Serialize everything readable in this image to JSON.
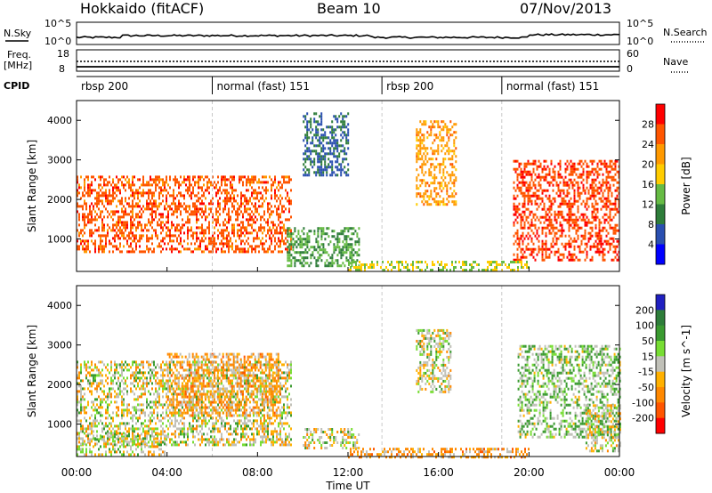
{
  "header": {
    "title": "Hokkaido (fitACF)",
    "beam": "Beam 10",
    "date": "07/Nov/2013"
  },
  "noise_panel": {
    "left_label": "N.Sky",
    "right_label": "N.Search",
    "left_ticks": [
      "10^5",
      "10^0"
    ],
    "right_ticks": [
      "10^5",
      "10^0"
    ]
  },
  "freq_panel": {
    "left_label_1": "Freq.",
    "left_label_2": "[MHz]",
    "right_label": "Nave",
    "left_ticks": [
      "18",
      "8"
    ],
    "right_ticks": [
      "60",
      "0"
    ]
  },
  "cpid": {
    "label": "CPID",
    "segments": [
      {
        "name": "rbsp 200",
        "start_hour": 0.0
      },
      {
        "name": "normal (fast) 151",
        "start_hour": 6.0
      },
      {
        "name": "rbsp 200",
        "start_hour": 13.5
      },
      {
        "name": "normal (fast) 151",
        "start_hour": 18.8
      }
    ]
  },
  "power_panel": {
    "ylabel": "Slant Range [km]",
    "cbar_label": "Power [dB]",
    "cbar_ticks": [
      "28",
      "24",
      "20",
      "16",
      "12",
      "8",
      "4"
    ],
    "colors": [
      "#0000ff",
      "#2a4fb0",
      "#2e7d3a",
      "#66bb44",
      "#ffcc00",
      "#ff9900",
      "#ff5500",
      "#ff0000"
    ]
  },
  "velocity_panel": {
    "ylabel": "Slant Range [km]",
    "cbar_label": "Velocity [m s^-1]",
    "cbar_ticks": [
      "200",
      "100",
      "50",
      "15",
      "-15",
      "-50",
      "-100",
      "-200"
    ],
    "colors": [
      "#2020c0",
      "#2e7d3a",
      "#3a9a30",
      "#77dd33",
      "#c0c0b8",
      "#ffb000",
      "#ff8800",
      "#ff5500",
      "#ff0000"
    ]
  },
  "x_axis": {
    "label": "Time UT",
    "ticks": [
      "00:00",
      "04:00",
      "08:00",
      "12:00",
      "16:00",
      "20:00",
      "00:00"
    ]
  },
  "chart_data": [
    {
      "type": "heatmap",
      "name": "power",
      "xlabel": "Time UT",
      "ylabel": "Slant Range [km]",
      "xlim": [
        0,
        24
      ],
      "ylim": [
        180,
        4500
      ],
      "yticks": [
        1000,
        2000,
        3000,
        4000
      ],
      "clim": [
        0,
        32
      ],
      "echo_regions": [
        {
          "t": [
            0.0,
            9.5
          ],
          "range": [
            700,
            2600
          ],
          "value": 26
        },
        {
          "t": [
            9.3,
            12.5
          ],
          "range": [
            300,
            1300
          ],
          "value": 12
        },
        {
          "t": [
            10.0,
            12.0
          ],
          "range": [
            2600,
            4200
          ],
          "value": 8
        },
        {
          "t": [
            15.0,
            16.8
          ],
          "range": [
            1900,
            4000
          ],
          "value": 22
        },
        {
          "t": [
            19.3,
            24.0
          ],
          "range": [
            500,
            3000
          ],
          "value": 27
        },
        {
          "t": [
            12.0,
            20.0
          ],
          "range": [
            180,
            450
          ],
          "value": 16
        }
      ]
    },
    {
      "type": "heatmap",
      "name": "velocity",
      "xlabel": "Time UT",
      "ylabel": "Slant Range [km]",
      "xlim": [
        0,
        24
      ],
      "ylim": [
        180,
        4500
      ],
      "yticks": [
        1000,
        2000,
        3000,
        4000
      ],
      "clim": [
        -250,
        250
      ],
      "echo_regions": [
        {
          "t": [
            0.0,
            9.5
          ],
          "range": [
            500,
            2600
          ],
          "value": 0
        },
        {
          "t": [
            0.0,
            4.0
          ],
          "range": [
            200,
            800
          ],
          "value": 0
        },
        {
          "t": [
            4.0,
            9.0
          ],
          "range": [
            1200,
            2800
          ],
          "value": -40
        },
        {
          "t": [
            10.0,
            12.5
          ],
          "range": [
            400,
            900
          ],
          "value": 0
        },
        {
          "t": [
            15.0,
            16.5
          ],
          "range": [
            1800,
            3400
          ],
          "value": 0
        },
        {
          "t": [
            19.5,
            24.0
          ],
          "range": [
            700,
            3000
          ],
          "value": 25
        },
        {
          "t": [
            22.5,
            24.0
          ],
          "range": [
            300,
            1500
          ],
          "value": 0
        },
        {
          "t": [
            12.0,
            20.0
          ],
          "range": [
            180,
            400
          ],
          "value": -40
        }
      ]
    }
  ]
}
